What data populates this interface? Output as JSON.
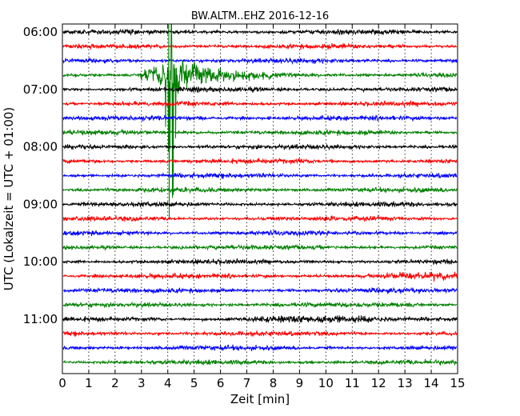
{
  "chart_data": {
    "type": "line",
    "title": "BW.ALTM..EHZ 2016-12-16",
    "xlabel": "Zeit  [min]",
    "ylabel": "UTC (Lokalzeit = UTC + 01:00)",
    "xlim": [
      0,
      15
    ],
    "x_ticks": [
      "0",
      "1",
      "2",
      "3",
      "4",
      "5",
      "6",
      "7",
      "8",
      "9",
      "10",
      "11",
      "12",
      "13",
      "14",
      "15"
    ],
    "y_tick_labels": [
      "06:00",
      "07:00",
      "08:00",
      "09:00",
      "10:00",
      "11:00"
    ],
    "grid": "vertical dotted",
    "trace_interval_min": 15,
    "trace_start_utc": "06:00",
    "trace_colors": [
      "#000000",
      "#ff0000",
      "#0000ff",
      "#008000"
    ],
    "trace_count": 24,
    "event": {
      "onset_min": 2.9,
      "peak_min": 4.1,
      "coda_end_min": 8.0,
      "trace_start": "06:45"
    }
  }
}
